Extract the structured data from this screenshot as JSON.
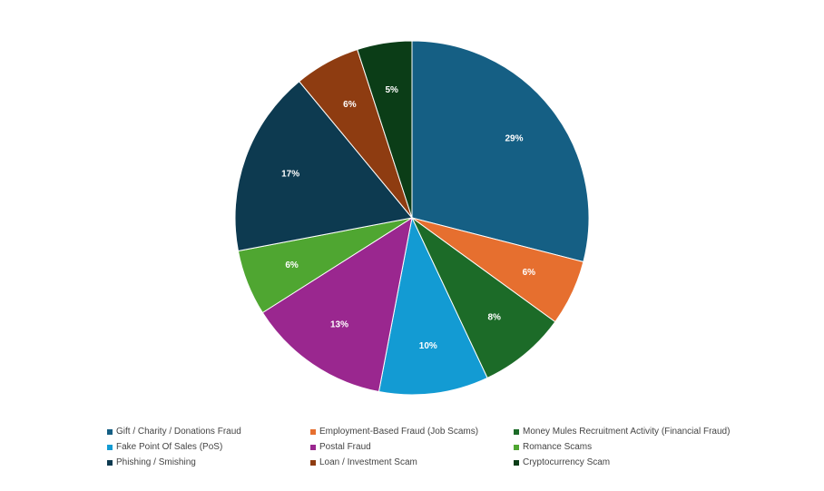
{
  "chart_data": {
    "type": "pie",
    "title": "",
    "slices": [
      {
        "label": "Gift / Charity / Donations Fraud",
        "value": 29,
        "display": "29%",
        "color": "#155f84"
      },
      {
        "label": "Employment-Based Fraud (Job Scams)",
        "value": 6,
        "display": "6%",
        "color": "#e66f2f"
      },
      {
        "label": "Money Mules Recruitment Activity (Financial Fraud)",
        "value": 8,
        "display": "8%",
        "color": "#1c6b28"
      },
      {
        "label": "Fake Point Of Sales (PoS)",
        "value": 10,
        "display": "10%",
        "color": "#139bd3"
      },
      {
        "label": "Postal Fraud",
        "value": 13,
        "display": "13%",
        "color": "#9a278f"
      },
      {
        "label": "Romance Scams",
        "value": 6,
        "display": "6%",
        "color": "#4fa631"
      },
      {
        "label": "Phishing / Smishing",
        "value": 17,
        "display": "17%",
        "color": "#0d3a50"
      },
      {
        "label": "Loan / Investment Scam",
        "value": 6,
        "display": "6%",
        "color": "#8e3c11"
      },
      {
        "label": "Cryptocurrency Scam",
        "value": 5,
        "display": "5%",
        "color": "#0b3d17"
      }
    ],
    "legend_position": "bottom"
  }
}
